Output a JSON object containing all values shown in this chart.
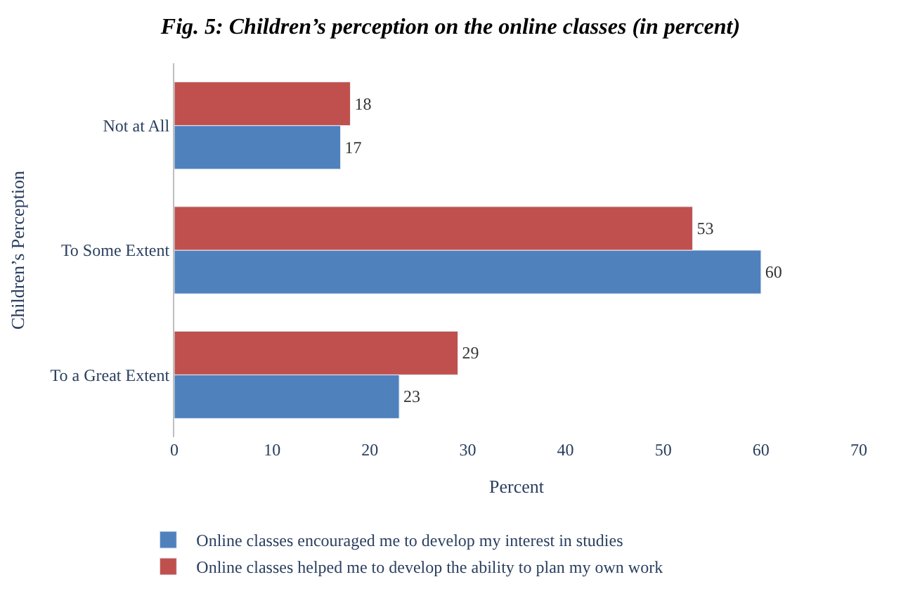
{
  "chart_data": {
    "type": "bar",
    "orientation": "horizontal",
    "title": "Fig. 5: Children’s perception on the online classes (in percent)",
    "xlabel": "Percent",
    "ylabel": "Children’s Perception",
    "categories": [
      "Not at All",
      "To Some Extent",
      "To a Great Extent"
    ],
    "series": [
      {
        "name": "Online classes encouraged me to develop my interest in studies",
        "color": "#4f81bd",
        "values": [
          17,
          60,
          23
        ]
      },
      {
        "name": "Online classes helped me to develop the ability to plan my own work",
        "color": "#c0504d",
        "values": [
          18,
          53,
          29
        ]
      }
    ],
    "xlim": [
      0,
      70
    ],
    "xticks": [
      0,
      10,
      20,
      30,
      40,
      50,
      60,
      70
    ],
    "data_labels": true,
    "legend": "bottom"
  }
}
